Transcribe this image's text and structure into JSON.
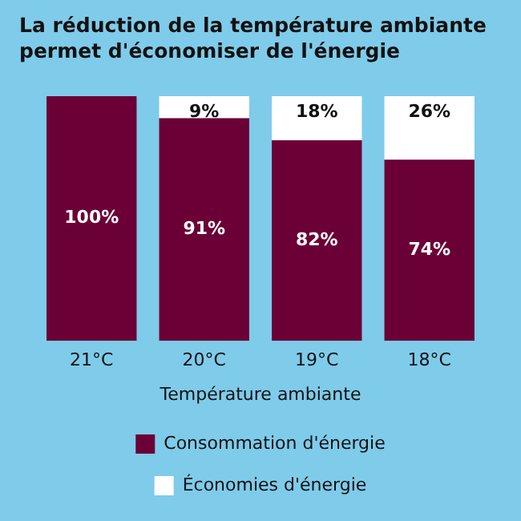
{
  "chart_data": {
    "type": "bar",
    "title": "La réduction de la température ambiante permet d'économiser de l'énergie",
    "xlabel": "Température ambiante",
    "categories": [
      "21°C",
      "20°C",
      "19°C",
      "18°C"
    ],
    "stacked": true,
    "tick_labels": "x",
    "grid": false,
    "legend": "bottom",
    "series": [
      {
        "name": "Consommation d'énergie",
        "color": "#6b0036",
        "values": [
          100,
          91,
          82,
          74
        ],
        "value_labels": [
          "100%",
          "91%",
          "82%",
          "74%"
        ]
      },
      {
        "name": "Économies d'énergie",
        "color": "#ffffff",
        "values": [
          0,
          9,
          18,
          26
        ],
        "value_labels": [
          null,
          "9%",
          "18%",
          "26%"
        ]
      }
    ]
  }
}
